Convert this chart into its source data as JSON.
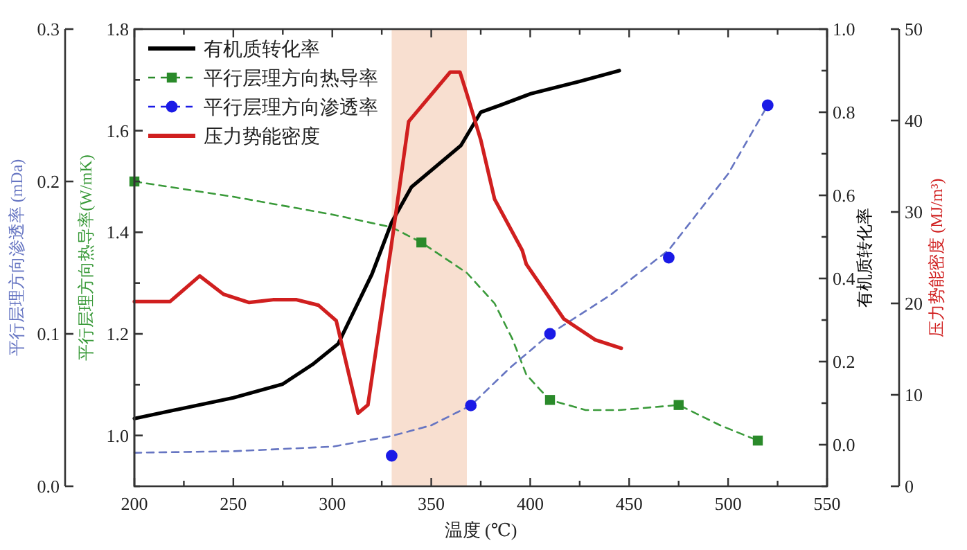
{
  "chart_data": [
    {
      "type": "line",
      "xlabel": "温度 (℃)",
      "ylabel": "平行层理方向热导率(W/mK)",
      "y2label": "有机质转化率",
      "xlim": [
        200,
        550
      ],
      "xticks": [
        200,
        {
          "value": 225,
          "label": null
        },
        250,
        {
          "value": 275,
          "label": null
        },
        300,
        {
          "value": 325,
          "label": null
        },
        350,
        {
          "value": 375,
          "label": null
        },
        400,
        {
          "value": 425,
          "label": null
        },
        450,
        {
          "value": 475,
          "label": null
        },
        500,
        {
          "value": 525,
          "label": null
        },
        550
      ],
      "ylim": [
        0.9,
        1.8
      ],
      "yticks": [
        {
          "value": 0.9,
          "label": null
        },
        {
          "value": 1,
          "label": "1.0"
        },
        {
          "value": 1.1,
          "label": null
        },
        1.2,
        {
          "value": 1.3,
          "label": null
        },
        1.4,
        {
          "value": 1.5,
          "label": null
        },
        1.6,
        {
          "value": 1.7,
          "label": null
        },
        1.8
      ],
      "y2lim": [
        -0.1,
        1.0
      ],
      "y2ticks": [
        {
          "value": -0.1,
          "label": null
        },
        {
          "value": 0,
          "label": "0.0"
        },
        {
          "value": 0.1,
          "label": null
        },
        0.2,
        {
          "value": 0.3,
          "label": null
        },
        0.4,
        {
          "value": 0.5,
          "label": null
        },
        0.6,
        {
          "value": 0.7,
          "label": null
        },
        0.8,
        {
          "value": 0.9,
          "label": null
        },
        {
          "value": 1,
          "label": "1.0"
        }
      ],
      "bands": [
        {
          "axis": "x",
          "from": 330,
          "to": 368,
          "color": "#f8dfd0"
        }
      ],
      "legend": "top left",
      "series": [
        {
          "name": "有机质转化率",
          "type": "line",
          "axis": "y2",
          "color": "#000000",
          "line_style": "solid",
          "x": [
            200,
            250,
            275,
            290,
            303,
            310,
            320,
            330,
            340,
            350,
            365,
            375,
            385,
            400,
            425,
            445
          ],
          "values": [
            0.063,
            0.113,
            0.146,
            0.193,
            0.243,
            0.312,
            0.41,
            0.535,
            0.62,
            0.66,
            0.72,
            0.8,
            0.817,
            0.844,
            0.874,
            0.9
          ]
        },
        {
          "type": "line",
          "color": "#3a9a3a",
          "line_style": "dashed",
          "x": [
            200,
            250,
            300,
            330,
            345,
            368,
            382,
            391,
            398,
            405,
            410,
            428,
            445,
            475,
            496,
            515
          ],
          "values": [
            1.5,
            1.47,
            1.435,
            1.41,
            1.38,
            1.32,
            1.26,
            1.19,
            1.12,
            1.09,
            1.07,
            1.05,
            1.05,
            1.06,
            1.02,
            0.99
          ]
        },
        {
          "name": "平行层理方向热导率",
          "type": "scatter",
          "color": "#2a8a2a",
          "marker": "square",
          "line_style": "dashed",
          "x": [
            200,
            345,
            410,
            475,
            515
          ],
          "values": [
            1.5,
            1.38,
            1.07,
            1.06,
            0.99
          ]
        }
      ]
    },
    {
      "type": "line",
      "ylabel": "平行层理方向渗透率 (mDa)",
      "y2label": "压力势能密度 (MJ/m³)",
      "tick_labels": "y",
      "xlim": [
        200,
        550
      ],
      "ylim": [
        0,
        0.3
      ],
      "yticks": [
        {
          "value": 0,
          "label": "0.0"
        },
        0.1,
        0.2,
        0.3
      ],
      "y2lim": [
        0,
        50
      ],
      "y2ticks": [
        0,
        10,
        20,
        30,
        40,
        50
      ],
      "legend": "top left",
      "series": [
        {
          "type": "line",
          "color": "#6675c2",
          "line_style": "dashed",
          "x": [
            200,
            250,
            300,
            330,
            350,
            370,
            390,
            410,
            440,
            470,
            500,
            520
          ],
          "values": [
            0.022,
            0.023,
            0.026,
            0.033,
            0.04,
            0.053,
            0.078,
            0.1,
            0.125,
            0.155,
            0.205,
            0.25
          ]
        },
        {
          "name": "平行层理方向渗透率",
          "type": "scatter",
          "color": "#1a1ae6",
          "marker": "circle",
          "line_style": "dashed",
          "x": [
            330,
            370,
            410,
            470,
            520
          ],
          "values": [
            0.02,
            0.053,
            0.1,
            0.15,
            0.25
          ]
        },
        {
          "name": "压力势能密度",
          "type": "line",
          "axis": "y2",
          "color": "#d01f1f",
          "line_style": "solid",
          "x": [
            200,
            218,
            233,
            245,
            258,
            270,
            282,
            293,
            302,
            313,
            318,
            329.5,
            338.6,
            359.6,
            364.5,
            368,
            375,
            382,
            396,
            398,
            417,
            433,
            446
          ],
          "values": [
            20.2,
            20.2,
            23,
            21,
            20.1,
            20.4,
            20.4,
            19.8,
            18.1,
            8,
            8.9,
            25.8,
            39.9,
            45.3,
            45.3,
            42.9,
            37.9,
            31.4,
            25.8,
            24.3,
            18.3,
            16,
            15.1
          ]
        }
      ]
    }
  ]
}
